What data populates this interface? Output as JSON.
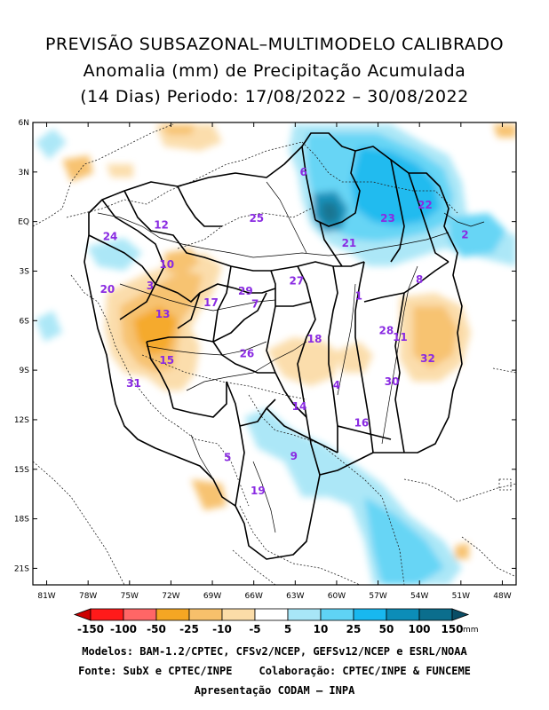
{
  "title": {
    "line1": "PREVISÃO SUBSAZONAL–MULTIMODELO CALIBRADO",
    "line2": "Anomalia (mm) de Precipitação Acumulada",
    "line3": "(14 Dias) Periodo: 17/08/2022 – 30/08/2022"
  },
  "lat_labels": [
    "6N",
    "3N",
    "EQ",
    "3S",
    "6S",
    "9S",
    "12S",
    "15S",
    "18S",
    "21S"
  ],
  "lon_labels": [
    "81W",
    "78W",
    "75W",
    "72W",
    "69W",
    "66W",
    "63W",
    "60W",
    "57W",
    "54W",
    "51W",
    "48W"
  ],
  "basin_numbers": [
    {
      "id": "1",
      "lon": -58.4,
      "lat": -4.5
    },
    {
      "id": "2",
      "lon": -50.7,
      "lat": -0.8
    },
    {
      "id": "3",
      "lon": -73.5,
      "lat": -3.9
    },
    {
      "id": "4",
      "lon": -60.0,
      "lat": -9.9
    },
    {
      "id": "5",
      "lon": -67.9,
      "lat": -14.3
    },
    {
      "id": "6",
      "lon": -62.4,
      "lat": 3.0
    },
    {
      "id": "7",
      "lon": -65.9,
      "lat": -5.0
    },
    {
      "id": "8",
      "lon": -54.0,
      "lat": -3.5
    },
    {
      "id": "9",
      "lon": -63.1,
      "lat": -14.2
    },
    {
      "id": "10",
      "lon": -72.3,
      "lat": -2.6
    },
    {
      "id": "11",
      "lon": -55.4,
      "lat": -7.0
    },
    {
      "id": "12",
      "lon": -72.7,
      "lat": -0.2
    },
    {
      "id": "13",
      "lon": -72.6,
      "lat": -5.6
    },
    {
      "id": "14",
      "lon": -62.7,
      "lat": -11.2
    },
    {
      "id": "15",
      "lon": -72.3,
      "lat": -8.4
    },
    {
      "id": "16",
      "lon": -58.2,
      "lat": -12.2
    },
    {
      "id": "17",
      "lon": -69.1,
      "lat": -4.9
    },
    {
      "id": "18",
      "lon": -61.6,
      "lat": -7.1
    },
    {
      "id": "19",
      "lon": -65.7,
      "lat": -16.3
    },
    {
      "id": "20",
      "lon": -76.6,
      "lat": -4.1
    },
    {
      "id": "21",
      "lon": -59.1,
      "lat": -1.3
    },
    {
      "id": "22",
      "lon": -53.6,
      "lat": 1.0
    },
    {
      "id": "23",
      "lon": -56.3,
      "lat": 0.2
    },
    {
      "id": "24",
      "lon": -76.4,
      "lat": -0.9
    },
    {
      "id": "25",
      "lon": -65.8,
      "lat": 0.2
    },
    {
      "id": "26",
      "lon": -66.5,
      "lat": -8.0
    },
    {
      "id": "27",
      "lon": -62.9,
      "lat": -3.6
    },
    {
      "id": "28",
      "lon": -56.4,
      "lat": -6.6
    },
    {
      "id": "29",
      "lon": -66.6,
      "lat": -4.2
    },
    {
      "id": "30",
      "lon": -56.0,
      "lat": -9.7
    },
    {
      "id": "31",
      "lon": -74.7,
      "lat": -9.8
    },
    {
      "id": "32",
      "lon": -53.4,
      "lat": -8.3
    }
  ],
  "colorbar": {
    "labels": [
      "-150",
      "-100",
      "-50",
      "-25",
      "-10",
      "-5",
      "5",
      "10",
      "25",
      "50",
      "100",
      "150"
    ],
    "unit": "mm",
    "colors": [
      "#cc0000",
      "#ff1a1a",
      "#ff6666",
      "#f5a623",
      "#f7c06b",
      "#fbdca8",
      "#ffffff",
      "#a8e6f7",
      "#5fd3f5",
      "#18b8ef",
      "#0c8db8",
      "#0b6e8d",
      "#0a4e66"
    ]
  },
  "footer": {
    "models": "Modelos: BAM-1.2/CPTEC, CFSv2/NCEP, GEFSv12/NCEP e ESRL/NOAA",
    "source": "Fonte: SubX e CPTEC/INPE",
    "collab": "Colaboração: CPTEC/INPE & FUNCEME",
    "presentation": "Apresentação CODAM – INPA"
  }
}
